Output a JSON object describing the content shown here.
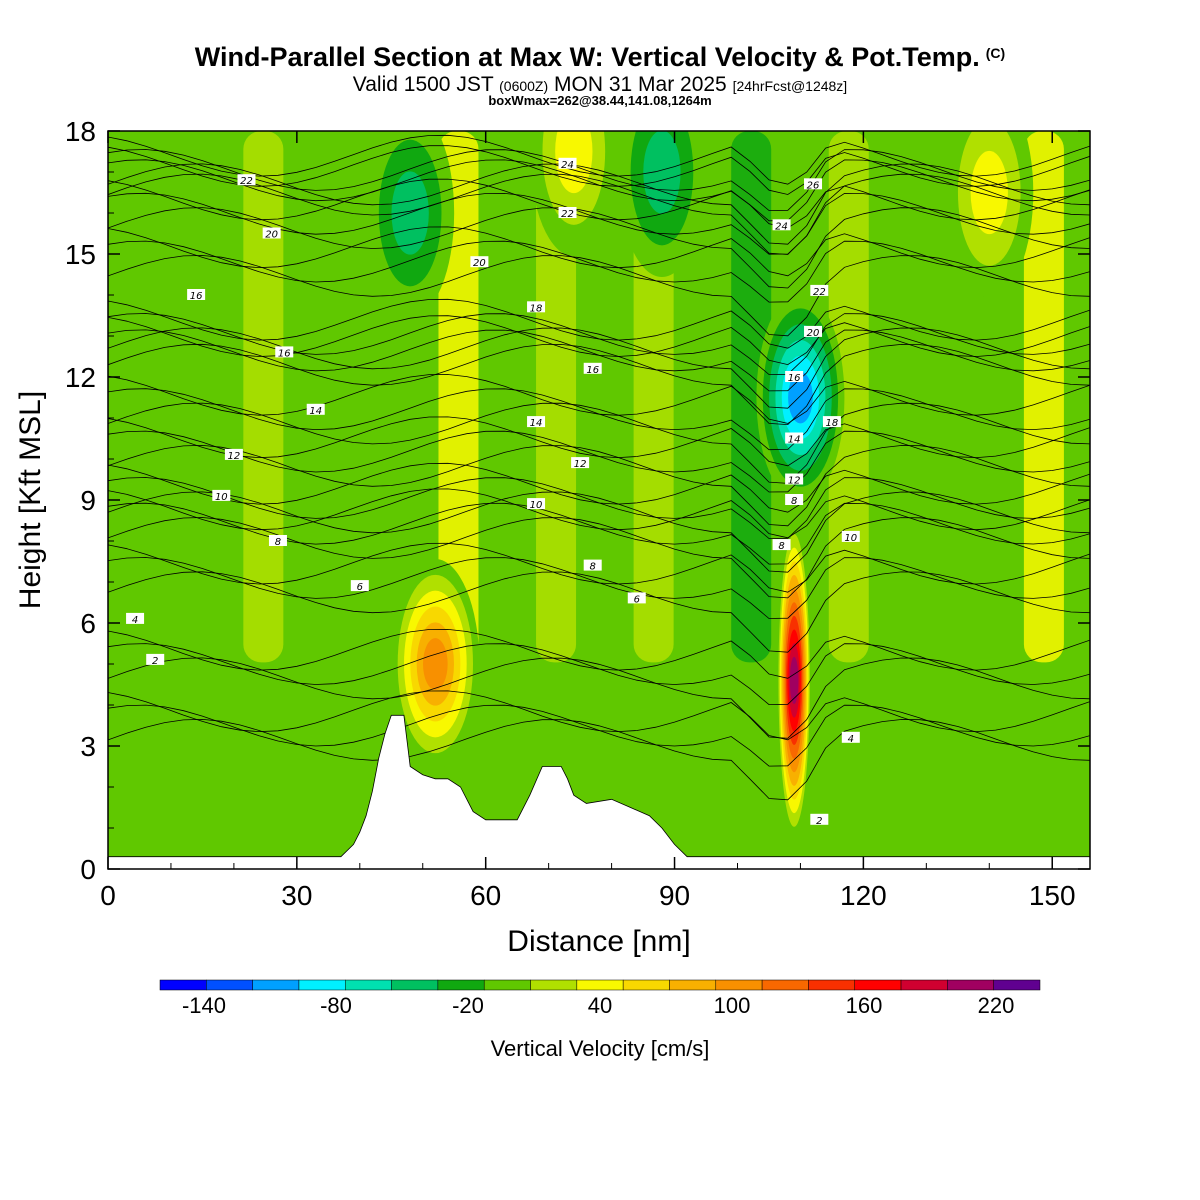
{
  "title": {
    "main": "Wind-Parallel Section at Max W: Vertical Velocity & Pot.Temp.",
    "copyright": "(C)",
    "valid_prefix": "Valid 1500 JST",
    "valid_utc": "(0600Z)",
    "valid_date": "MON 31 Mar 2025",
    "forecast": "[24hrFcst@1248z]",
    "box_info": "boxWmax=262@38.44,141.08,1264m"
  },
  "chart_data": {
    "type": "heatmap",
    "xlabel": "Distance [nm]",
    "ylabel": "Height [Kft MSL]",
    "xlim": [
      0,
      156
    ],
    "ylim": [
      0,
      18
    ],
    "xticks": [
      0,
      30,
      60,
      90,
      120,
      150
    ],
    "yticks": [
      0,
      3,
      6,
      9,
      12,
      15,
      18
    ],
    "colorbar": {
      "label": "Vertical Velocity [cm/s]",
      "range": [
        -160,
        240
      ],
      "tick_values": [
        -140,
        -80,
        -20,
        40,
        100,
        160,
        220
      ],
      "colors": [
        "#0000ff",
        "#0050ff",
        "#00a0ff",
        "#00f0ff",
        "#00e0b0",
        "#00c060",
        "#10a810",
        "#60c800",
        "#b0e000",
        "#f8f800",
        "#f8d800",
        "#f8b000",
        "#f89000",
        "#f86800",
        "#f83000",
        "#ff0000",
        "#d00030",
        "#a00060",
        "#600090"
      ]
    },
    "background_w": 0,
    "updrafts": [
      {
        "x": 52,
        "y": 5.0,
        "peak_w": 120
      },
      {
        "x": 109,
        "y": 4.6,
        "peak_w": 220
      },
      {
        "x": 74,
        "y": 17.5,
        "peak_w": 45
      },
      {
        "x": 140,
        "y": 16.5,
        "peak_w": 45
      }
    ],
    "downdrafts": [
      {
        "x": 110,
        "y": 11.5,
        "peak_w": -120
      },
      {
        "x": 48,
        "y": 16.0,
        "peak_w": -50
      },
      {
        "x": 88,
        "y": 17.0,
        "peak_w": -55
      }
    ],
    "terrain": [
      [
        0,
        0.3
      ],
      [
        37,
        0.3
      ],
      [
        39,
        0.6
      ],
      [
        40,
        0.9
      ],
      [
        41,
        1.3
      ],
      [
        42,
        1.9
      ],
      [
        43,
        2.7
      ],
      [
        44,
        3.3
      ],
      [
        45,
        3.75
      ],
      [
        47,
        3.75
      ],
      [
        48,
        2.5
      ],
      [
        50,
        2.3
      ],
      [
        52,
        2.2
      ],
      [
        54,
        2.2
      ],
      [
        56,
        2.0
      ],
      [
        58,
        1.4
      ],
      [
        60,
        1.2
      ],
      [
        65,
        1.2
      ],
      [
        67,
        1.8
      ],
      [
        69,
        2.5
      ],
      [
        72,
        2.5
      ],
      [
        73,
        2.2
      ],
      [
        74,
        1.8
      ],
      [
        76,
        1.6
      ],
      [
        80,
        1.7
      ],
      [
        83,
        1.5
      ],
      [
        86,
        1.3
      ],
      [
        88,
        1.0
      ],
      [
        90,
        0.6
      ],
      [
        92,
        0.3
      ],
      [
        156,
        0.3
      ]
    ],
    "theta_contours": [
      {
        "label": "2",
        "positions": [
          [
            7.5,
            5.1
          ],
          [
            113,
            1.2
          ]
        ]
      },
      {
        "label": "4",
        "positions": [
          [
            4.3,
            6.1
          ],
          [
            118,
            3.2
          ]
        ]
      },
      {
        "label": "6",
        "positions": [
          [
            40,
            6.9
          ],
          [
            84,
            6.6
          ]
        ]
      },
      {
        "label": "8",
        "positions": [
          [
            27,
            8.0
          ],
          [
            77,
            7.4
          ],
          [
            107,
            7.9
          ],
          [
            109,
            9.0
          ]
        ]
      },
      {
        "label": "10",
        "positions": [
          [
            18,
            9.1
          ],
          [
            68,
            8.9
          ],
          [
            118,
            8.1
          ]
        ]
      },
      {
        "label": "12",
        "positions": [
          [
            20,
            10.1
          ],
          [
            75,
            9.9
          ],
          [
            109,
            9.5
          ]
        ]
      },
      {
        "label": "14",
        "positions": [
          [
            33,
            11.2
          ],
          [
            68,
            10.9
          ],
          [
            109,
            10.5
          ]
        ]
      },
      {
        "label": "16",
        "positions": [
          [
            14,
            14.0
          ],
          [
            28,
            12.6
          ],
          [
            77,
            12.2
          ],
          [
            109,
            12.0
          ]
        ]
      },
      {
        "label": "18",
        "positions": [
          [
            68,
            13.7
          ],
          [
            115,
            10.9
          ]
        ]
      },
      {
        "label": "20",
        "positions": [
          [
            26,
            15.5
          ],
          [
            59,
            14.8
          ],
          [
            112,
            13.1
          ]
        ]
      },
      {
        "label": "22",
        "positions": [
          [
            22,
            16.8
          ],
          [
            73,
            16.0
          ],
          [
            113,
            14.1
          ]
        ]
      },
      {
        "label": "24",
        "positions": [
          [
            73,
            17.2
          ],
          [
            107,
            15.7
          ]
        ]
      },
      {
        "label": "26",
        "positions": [
          [
            112,
            16.7
          ]
        ]
      }
    ]
  }
}
